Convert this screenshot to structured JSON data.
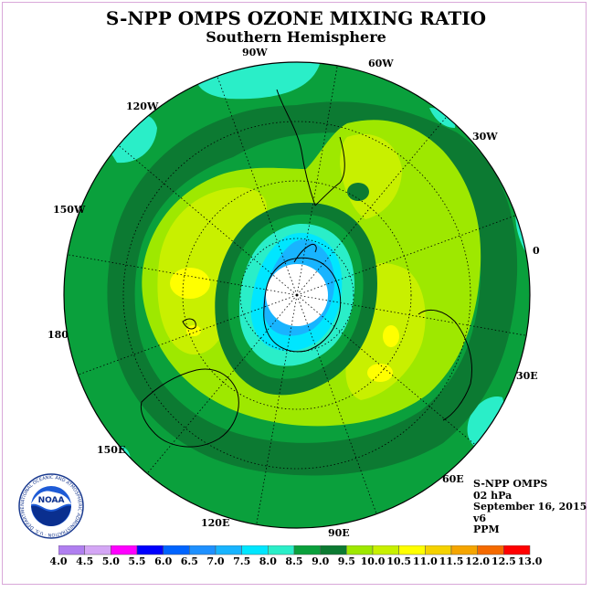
{
  "title": "S-NPP OMPS OZONE MIXING RATIO",
  "subtitle": "Southern Hemisphere",
  "longitude_labels": {
    "w90": "90W",
    "w60": "60W",
    "w30": "30W",
    "w120": "120W",
    "w150": "150W",
    "e0": "0",
    "w180": "180",
    "e30": "30E",
    "e60": "60E",
    "e150": "150E",
    "e120": "120E",
    "e90": "90E"
  },
  "info": {
    "instrument": "S-NPP OMPS",
    "pressure": "02 hPa",
    "date": "September 16, 2015",
    "version": "v6",
    "units": "PPM"
  },
  "logo": {
    "text": "NOAA",
    "ring_text": "NATIONAL OCEANIC AND ATMOSPHERIC ADMINISTRATION · U.S. DEPARTMENT OF COMMERCE"
  },
  "colorbar": {
    "labels": [
      "4.0",
      "4.5",
      "5.0",
      "5.5",
      "6.0",
      "6.5",
      "7.0",
      "7.5",
      "8.0",
      "8.5",
      "9.0",
      "9.5",
      "10.0",
      "10.5",
      "11.0",
      "11.5",
      "12.0",
      "12.5",
      "13.0"
    ],
    "colors": [
      "#b07ff0",
      "#d4a6f5",
      "#ff00ff",
      "#0000ff",
      "#0064ff",
      "#1e90ff",
      "#18b4ff",
      "#00e6ff",
      "#2aeec8",
      "#0aa03c",
      "#0c7a32",
      "#9ee800",
      "#c8f000",
      "#ffff00",
      "#f5d200",
      "#f5a500",
      "#f56a00",
      "#ff0000",
      "#a0522d"
    ]
  },
  "colors": {
    "base": "#0aa03c",
    "dark_band": "#0c7a32",
    "lime": "#9ee800",
    "yellowgreen": "#c8f000",
    "yellow": "#ffff00",
    "cyan": "#2aeec8",
    "light_blue": "#00e6ff",
    "blue": "#18b4ff"
  }
}
